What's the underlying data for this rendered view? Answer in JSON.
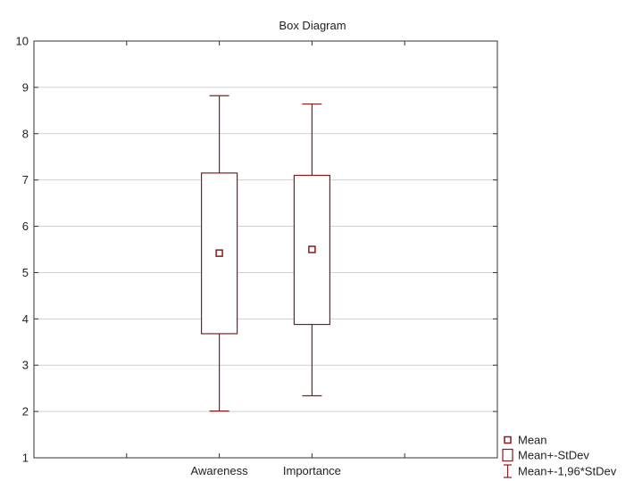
{
  "chart_data": {
    "type": "box",
    "title": "Box Diagram",
    "categories": [
      "Awareness",
      "Importance"
    ],
    "ylim": [
      1,
      10
    ],
    "yticks": [
      1,
      2,
      3,
      4,
      5,
      6,
      7,
      8,
      9,
      10
    ],
    "grid": true,
    "legend_position": "bottom-right",
    "boxes": [
      {
        "category": "Awareness",
        "mean": 5.42,
        "box_low": 3.68,
        "box_high": 7.15,
        "whisker_low": 2.01,
        "whisker_high": 8.82
      },
      {
        "category": "Importance",
        "mean": 5.5,
        "box_low": 3.88,
        "box_high": 7.1,
        "whisker_low": 2.34,
        "whisker_high": 8.64
      }
    ],
    "legend": [
      {
        "symbol": "mean",
        "label": "Mean"
      },
      {
        "symbol": "box",
        "label": "Mean+-StDev"
      },
      {
        "symbol": "whisker",
        "label": "Mean+-1,96*StDev"
      }
    ],
    "color": "#8b1a1a"
  }
}
